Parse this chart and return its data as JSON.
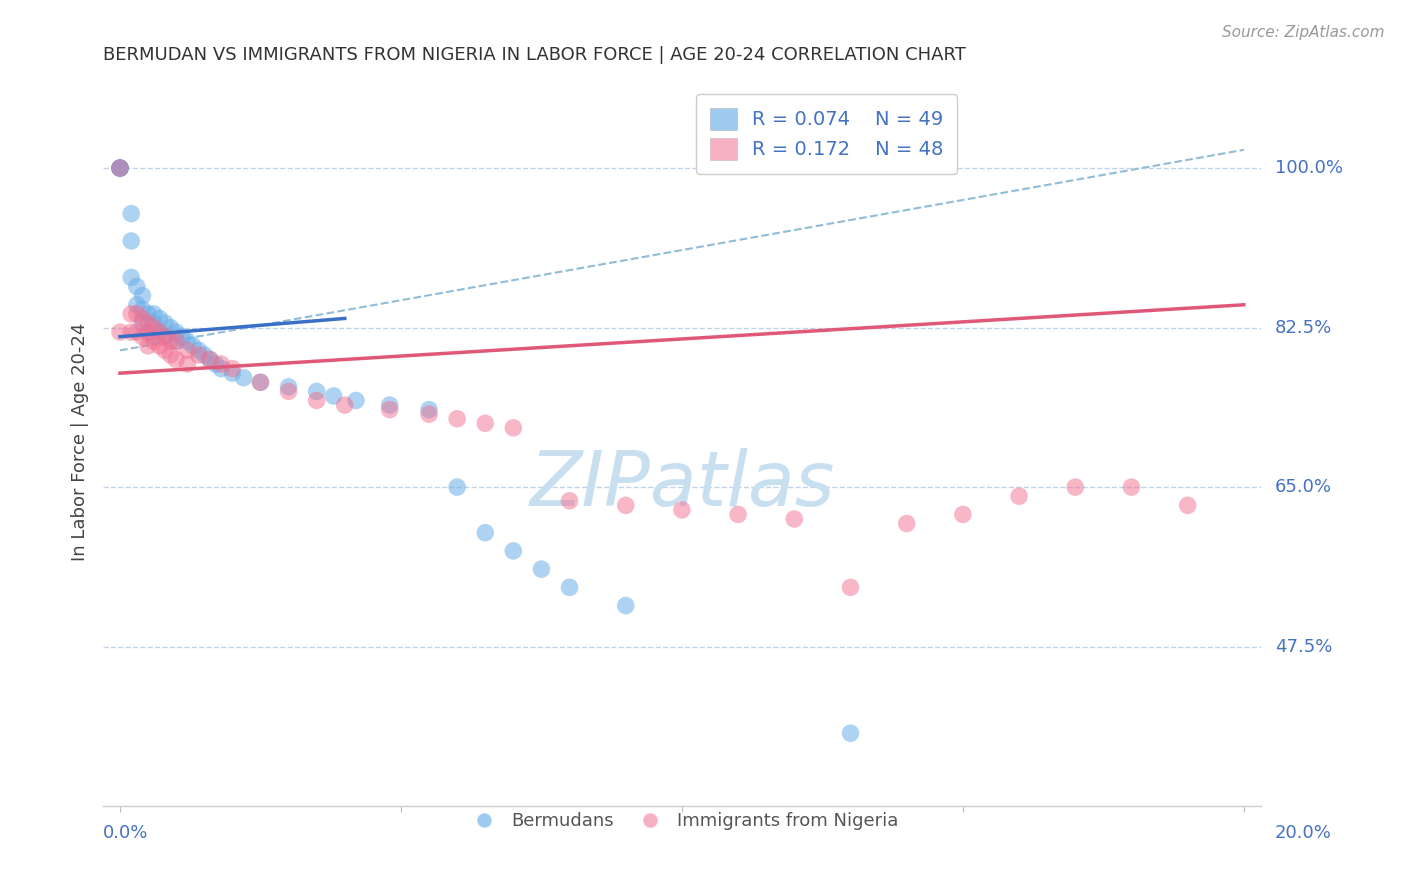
{
  "title": "BERMUDAN VS IMMIGRANTS FROM NIGERIA IN LABOR FORCE | AGE 20-24 CORRELATION CHART",
  "source": "Source: ZipAtlas.com",
  "ylabel": "In Labor Force | Age 20-24",
  "ytick_labels": [
    "100.0%",
    "82.5%",
    "65.0%",
    "47.5%"
  ],
  "ytick_values": [
    1.0,
    0.825,
    0.65,
    0.475
  ],
  "xlim": [
    0.0,
    0.2
  ],
  "ylim": [
    0.3,
    1.1
  ],
  "blue_color": "#6aaee8",
  "pink_color": "#f07090",
  "blue_line_color": "#3a6fc8",
  "pink_line_color": "#e05878",
  "dashed_line_color": "#90bcd8",
  "watermark_color": "#c8dff0",
  "blue_label": "R = 0.074    N = 49",
  "pink_label": "R = 0.172    N = 48",
  "bermudans_x": [
    0.0,
    0.0,
    0.0,
    0.0,
    0.0,
    0.002,
    0.002,
    0.002,
    0.003,
    0.003,
    0.004,
    0.004,
    0.004,
    0.005,
    0.005,
    0.006,
    0.006,
    0.006,
    0.007,
    0.007,
    0.008,
    0.008,
    0.009,
    0.01,
    0.01,
    0.011,
    0.012,
    0.013,
    0.014,
    0.015,
    0.016,
    0.017,
    0.018,
    0.02,
    0.022,
    0.025,
    0.03,
    0.035,
    0.038,
    0.042,
    0.048,
    0.055,
    0.06,
    0.065,
    0.07,
    0.075,
    0.08,
    0.09,
    0.13
  ],
  "bermudans_y": [
    1.0,
    1.0,
    1.0,
    1.0,
    1.0,
    0.95,
    0.92,
    0.88,
    0.87,
    0.85,
    0.86,
    0.845,
    0.83,
    0.84,
    0.82,
    0.84,
    0.83,
    0.815,
    0.835,
    0.82,
    0.83,
    0.815,
    0.825,
    0.82,
    0.81,
    0.815,
    0.81,
    0.805,
    0.8,
    0.795,
    0.79,
    0.785,
    0.78,
    0.775,
    0.77,
    0.765,
    0.76,
    0.755,
    0.75,
    0.745,
    0.74,
    0.735,
    0.65,
    0.6,
    0.58,
    0.56,
    0.54,
    0.52,
    0.38
  ],
  "nigeria_x": [
    0.0,
    0.0,
    0.002,
    0.002,
    0.003,
    0.003,
    0.004,
    0.004,
    0.005,
    0.005,
    0.005,
    0.006,
    0.006,
    0.007,
    0.007,
    0.008,
    0.008,
    0.009,
    0.009,
    0.01,
    0.01,
    0.012,
    0.012,
    0.014,
    0.016,
    0.018,
    0.02,
    0.025,
    0.03,
    0.035,
    0.04,
    0.048,
    0.055,
    0.06,
    0.065,
    0.07,
    0.08,
    0.09,
    0.1,
    0.11,
    0.12,
    0.13,
    0.14,
    0.15,
    0.16,
    0.17,
    0.18,
    0.19
  ],
  "nigeria_y": [
    1.0,
    0.82,
    0.84,
    0.82,
    0.84,
    0.82,
    0.835,
    0.815,
    0.83,
    0.82,
    0.805,
    0.825,
    0.81,
    0.82,
    0.805,
    0.815,
    0.8,
    0.81,
    0.795,
    0.81,
    0.79,
    0.8,
    0.785,
    0.795,
    0.79,
    0.785,
    0.78,
    0.765,
    0.755,
    0.745,
    0.74,
    0.735,
    0.73,
    0.725,
    0.72,
    0.715,
    0.635,
    0.63,
    0.625,
    0.62,
    0.615,
    0.54,
    0.61,
    0.62,
    0.64,
    0.65,
    0.65,
    0.63
  ],
  "blue_trendline_x": [
    0.0,
    0.04
  ],
  "blue_trendline_y": [
    0.815,
    0.835
  ],
  "pink_trendline_x": [
    0.0,
    0.2
  ],
  "pink_trendline_y": [
    0.775,
    0.85
  ],
  "dashed_line_x": [
    0.0,
    0.2
  ],
  "dashed_line_y": [
    0.8,
    1.02
  ]
}
